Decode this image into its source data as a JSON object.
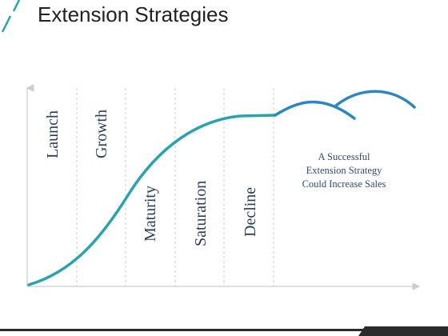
{
  "slide": {
    "title": "Extension Strategies"
  },
  "stages": [
    {
      "label": "Launch"
    },
    {
      "label": "Growth"
    },
    {
      "label": "Maturity"
    },
    {
      "label": "Saturation"
    },
    {
      "label": "Decline"
    }
  ],
  "note": {
    "lines": [
      "A Successful",
      "Extension Strategy",
      "Could Increase Sales"
    ]
  },
  "colors": {
    "main_curve": "#2aa3ad",
    "extension_curve": "#2e86c1",
    "axis": "#c9cdd2",
    "title_accent": "#2aa3ad",
    "footer_dark": "#2b2b2b"
  }
}
